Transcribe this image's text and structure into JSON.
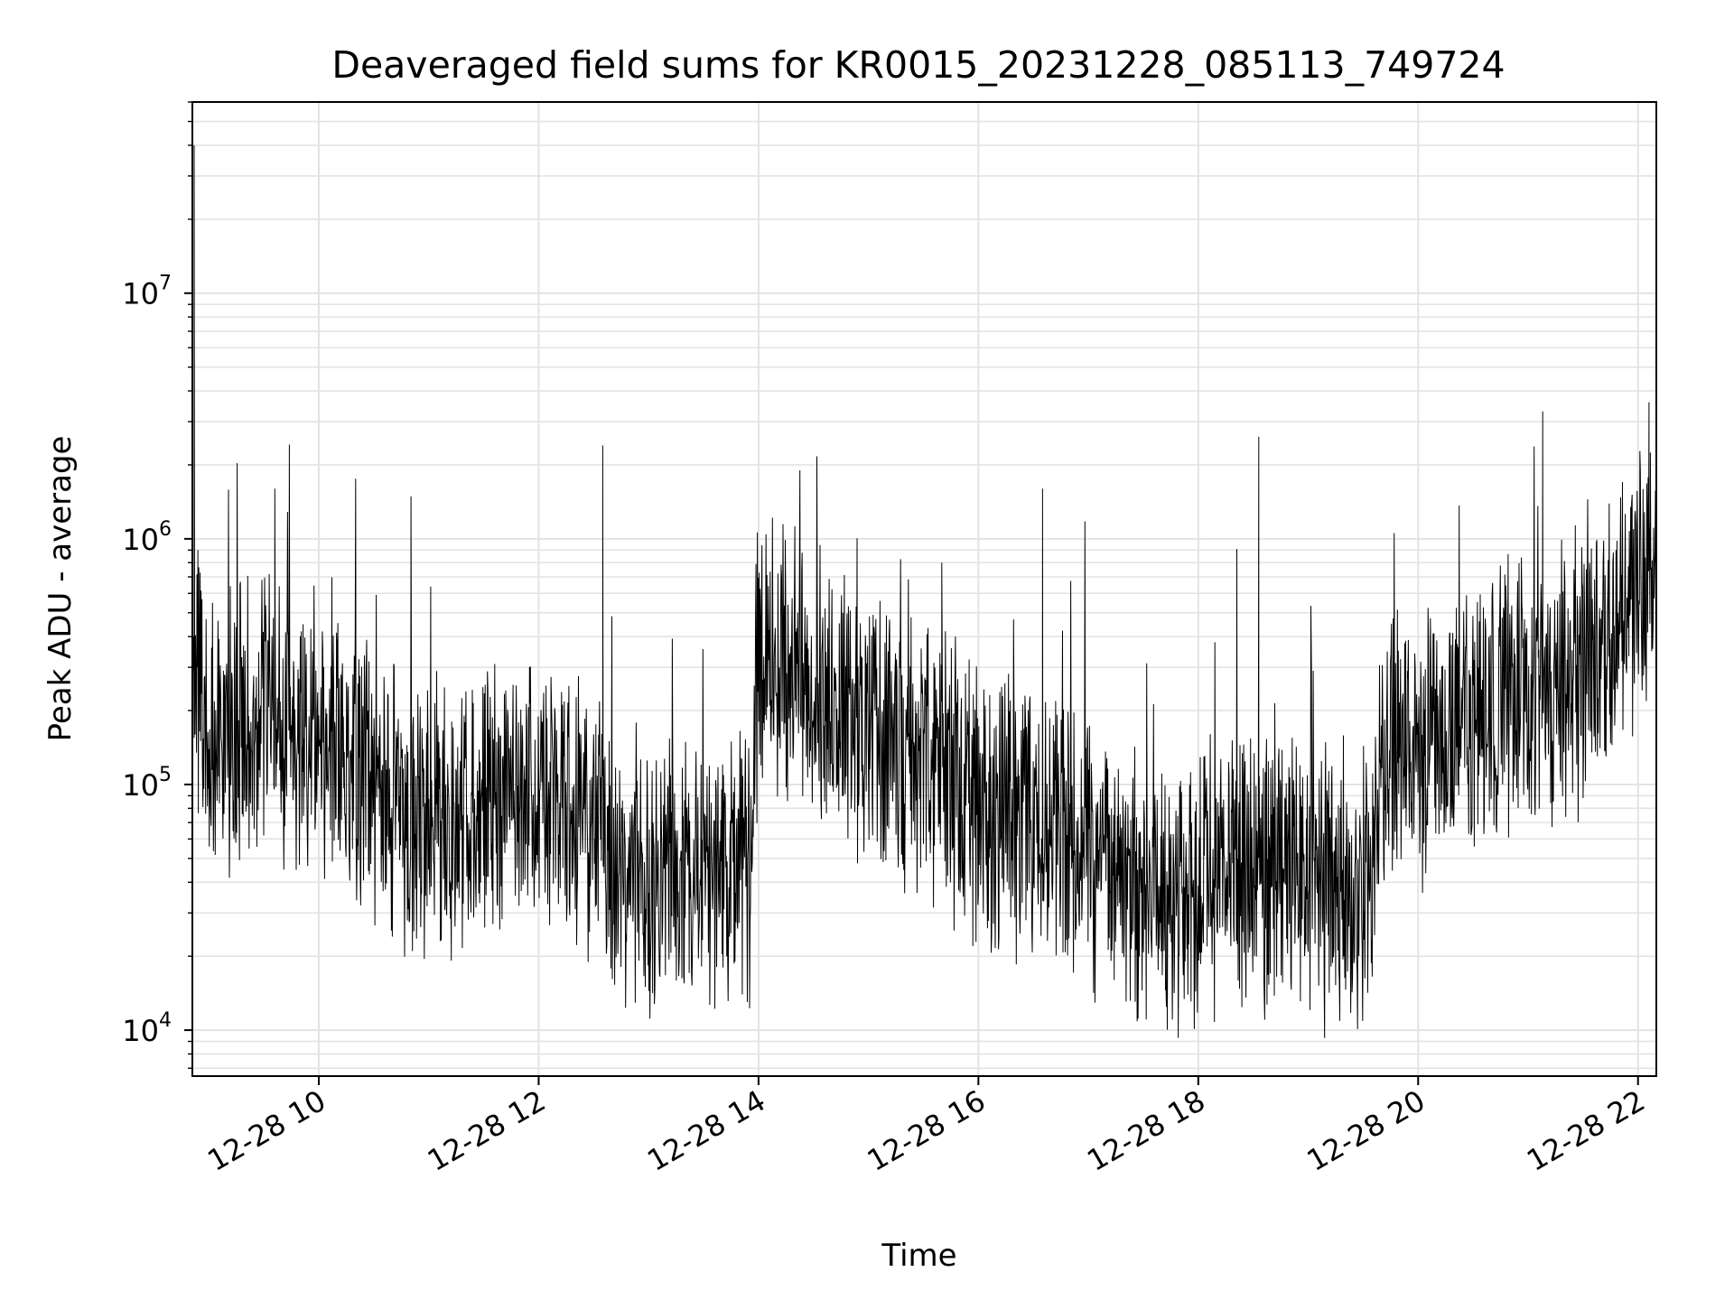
{
  "chart_data": {
    "type": "line",
    "title": "Deaveraged field sums for KR0015_20231228_085113_749724",
    "xlabel": "Time",
    "ylabel": "Peak ADU - average",
    "y_scale": "log",
    "x_range": [
      "12-28 08:51",
      "12-28 22:10"
    ],
    "ylim": [
      6500,
      60000000
    ],
    "grid": true,
    "line_color": "#000000",
    "x_ticks": [
      "12-28 10",
      "12-28 12",
      "12-28 14",
      "12-28 16",
      "12-28 18",
      "12-28 20",
      "12-28 22"
    ],
    "y_ticks": [
      {
        "base": "10",
        "exp": "4",
        "value": 10000
      },
      {
        "base": "10",
        "exp": "5",
        "value": 100000
      },
      {
        "base": "10",
        "exp": "6",
        "value": 1000000
      },
      {
        "base": "10",
        "exp": "7",
        "value": 10000000
      }
    ],
    "series": [
      {
        "x": [
          "12-28 08:51",
          "12-28 08:52",
          "12-28 08:53",
          "12-28 08:54",
          "12-28 08:56",
          "12-28 09:00",
          "12-28 09:10",
          "12-28 09:20",
          "12-28 09:30",
          "12-28 09:36",
          "12-28 09:40",
          "12-28 09:50",
          "12-28 10:00",
          "12-28 10:10",
          "12-28 10:20",
          "12-28 10:30",
          "12-28 10:40",
          "12-28 10:50",
          "12-28 11:00",
          "12-28 11:20",
          "12-28 11:40",
          "12-28 12:00",
          "12-28 12:20",
          "12-28 12:35",
          "12-28 12:40",
          "12-28 12:50",
          "12-28 13:00",
          "12-28 13:20",
          "12-28 13:40",
          "12-28 13:55",
          "12-28 14:00",
          "12-28 14:10",
          "12-28 14:20",
          "12-28 14:40",
          "12-28 15:00",
          "12-28 15:20",
          "12-28 15:30",
          "12-28 15:40",
          "12-28 16:00",
          "12-28 16:20",
          "12-28 16:35",
          "12-28 16:40",
          "12-28 17:00",
          "12-28 17:20",
          "12-28 17:40",
          "12-28 18:00",
          "12-28 18:20",
          "12-28 18:33",
          "12-28 18:40",
          "12-28 19:00",
          "12-28 19:20",
          "12-28 19:35",
          "12-28 19:40",
          "12-28 20:00",
          "12-28 20:20",
          "12-28 20:40",
          "12-28 21:00",
          "12-28 21:08",
          "12-28 21:20",
          "12-28 21:40",
          "12-28 22:00",
          "12-28 22:06",
          "12-28 22:10"
        ],
        "y": [
          400000,
          40000000,
          250000,
          900000,
          180000,
          150000,
          200000,
          180000,
          250000,
          1600000,
          180000,
          220000,
          200000,
          150000,
          100000,
          90000,
          80000,
          70000,
          90000,
          110000,
          120000,
          130000,
          80000,
          2400000,
          60000,
          50000,
          45000,
          40000,
          45000,
          50000,
          400000,
          350000,
          250000,
          200000,
          150000,
          120000,
          100000,
          800000,
          70000,
          60000,
          1600000,
          55000,
          45000,
          40000,
          35000,
          35000,
          50000,
          2600000,
          60000,
          50000,
          40000,
          45000,
          150000,
          150000,
          180000,
          200000,
          250000,
          3300000,
          250000,
          300000,
          400000,
          3600000,
          600000
        ]
      }
    ]
  }
}
